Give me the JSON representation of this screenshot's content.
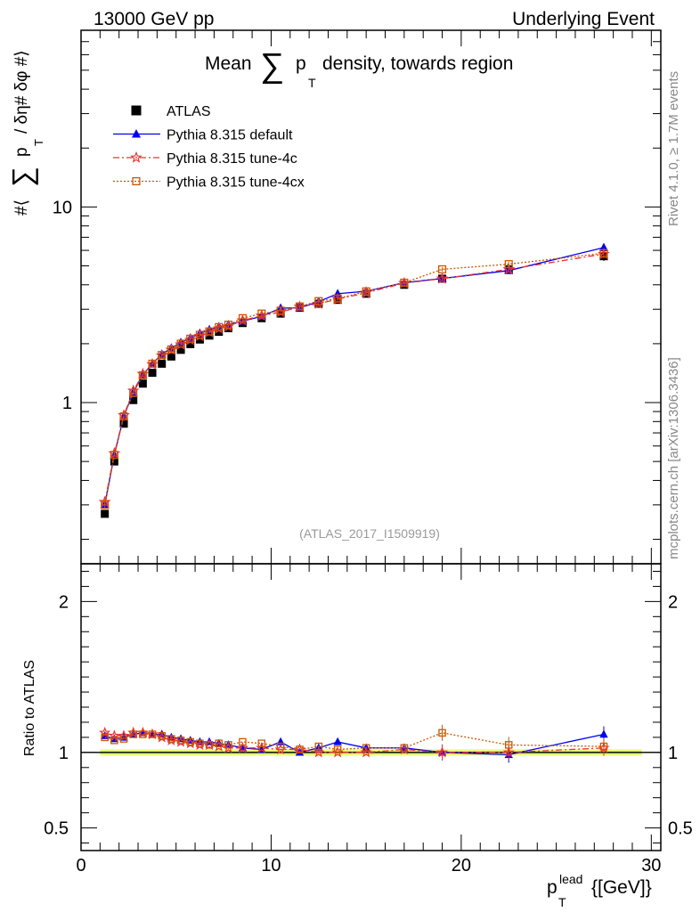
{
  "header": {
    "left": "13000 GeV pp",
    "right": "Underlying Event"
  },
  "side_text": {
    "rivet": "Rivet 4.1.0, ≥ 1.7M events",
    "site": "mcplots.cern.ch [arXiv:1306.3436]"
  },
  "watermark": "(ATLAS_2017_I1509919)",
  "chart_data": [
    {
      "type": "line",
      "title": "Mean ∑ p_T density, towards region",
      "title_parts": {
        "pre": "Mean",
        "sum": "∑",
        "p": "p",
        "sub": "T",
        "post": "density, towards region"
      },
      "ylabel": "#⟨ ∑ p_T / δη# δφ #⟩",
      "ylabel_parts": {
        "pre": "#⟨",
        "sum": "∑",
        "p": "p",
        "sub": "T",
        "post": "/ δη# δφ #⟩"
      },
      "yscale": "log",
      "xlim": [
        0,
        30.5
      ],
      "ylim": [
        0.15,
        80
      ],
      "ytick_labels": [
        {
          "value": 1,
          "label": "1"
        },
        {
          "value": 10,
          "label": "10"
        }
      ],
      "legend_position": "top-left",
      "x": [
        1.25,
        1.75,
        2.25,
        2.75,
        3.25,
        3.75,
        4.25,
        4.75,
        5.25,
        5.75,
        6.25,
        6.75,
        7.25,
        7.75,
        8.5,
        9.5,
        10.5,
        11.5,
        12.5,
        13.5,
        15,
        17,
        19,
        22.5,
        27.5
      ],
      "series": [
        {
          "name": "ATLAS",
          "style": "data",
          "color": "#000000",
          "marker": "square",
          "values": [
            0.27,
            0.5,
            0.78,
            1.03,
            1.25,
            1.42,
            1.58,
            1.72,
            1.86,
            1.99,
            2.1,
            2.2,
            2.3,
            2.4,
            2.55,
            2.7,
            2.85,
            3.05,
            3.2,
            3.35,
            3.6,
            4.0,
            4.3,
            4.8,
            5.6
          ],
          "errors": [
            0.01,
            0.01,
            0.02,
            0.02,
            0.02,
            0.02,
            0.02,
            0.03,
            0.03,
            0.03,
            0.03,
            0.03,
            0.04,
            0.04,
            0.04,
            0.05,
            0.05,
            0.06,
            0.07,
            0.08,
            0.08,
            0.1,
            0.13,
            0.18,
            0.3
          ]
        },
        {
          "name": "Pythia 8.315 default",
          "style": "solid",
          "color": "#0000ee",
          "marker": "triangle",
          "values": [
            0.3,
            0.54,
            0.85,
            1.13,
            1.39,
            1.58,
            1.77,
            1.9,
            2.03,
            2.14,
            2.26,
            2.36,
            2.44,
            2.5,
            2.61,
            2.76,
            3.04,
            3.05,
            3.28,
            3.6,
            3.71,
            4.1,
            4.31,
            4.73,
            6.2
          ],
          "errors": [
            0.01,
            0.01,
            0.02,
            0.02,
            0.02,
            0.02,
            0.03,
            0.03,
            0.03,
            0.03,
            0.03,
            0.03,
            0.04,
            0.04,
            0.04,
            0.05,
            0.05,
            0.05,
            0.06,
            0.07,
            0.07,
            0.1,
            0.12,
            0.15,
            0.3
          ]
        },
        {
          "name": "Pythia 8.315 tune-4c",
          "style": "dashdot",
          "color": "#ee3333",
          "marker": "star",
          "values": [
            0.31,
            0.55,
            0.86,
            1.15,
            1.4,
            1.57,
            1.74,
            1.86,
            1.98,
            2.09,
            2.19,
            2.29,
            2.39,
            2.45,
            2.63,
            2.78,
            2.9,
            3.09,
            3.2,
            3.38,
            3.64,
            4.08,
            4.3,
            4.8,
            5.75
          ],
          "errors": [
            0.01,
            0.01,
            0.02,
            0.02,
            0.02,
            0.02,
            0.03,
            0.03,
            0.03,
            0.03,
            0.03,
            0.03,
            0.04,
            0.04,
            0.04,
            0.05,
            0.05,
            0.05,
            0.06,
            0.07,
            0.07,
            0.1,
            0.12,
            0.15,
            0.3
          ]
        },
        {
          "name": "Pythia 8.315 tune-4cx",
          "style": "dotted",
          "color": "#cc5500",
          "marker": "open-square",
          "values": [
            0.3,
            0.54,
            0.85,
            1.12,
            1.38,
            1.58,
            1.75,
            1.87,
            2.0,
            2.12,
            2.22,
            2.31,
            2.43,
            2.5,
            2.7,
            2.85,
            2.95,
            3.1,
            3.3,
            3.4,
            3.7,
            4.1,
            4.8,
            5.1,
            5.8
          ],
          "errors": [
            0.01,
            0.01,
            0.02,
            0.02,
            0.02,
            0.02,
            0.03,
            0.03,
            0.03,
            0.03,
            0.03,
            0.03,
            0.04,
            0.04,
            0.04,
            0.05,
            0.05,
            0.05,
            0.06,
            0.07,
            0.07,
            0.1,
            0.12,
            0.15,
            0.3
          ]
        }
      ]
    },
    {
      "type": "line",
      "title": "",
      "ylabel": "Ratio to ATLAS",
      "xlabel": "p_T^lead {[GeV]}",
      "xlabel_parts": {
        "p": "p",
        "sub": "T",
        "sup": "lead",
        "post": "{[GeV]}"
      },
      "yscale": "linear",
      "xlim": [
        0,
        30.5
      ],
      "ylim": [
        0.35,
        2.25
      ],
      "xticks": [
        0,
        10,
        20,
        30
      ],
      "ytick_labels": [
        {
          "value": 0.5,
          "label": "0.5"
        },
        {
          "value": 1,
          "label": "1"
        },
        {
          "value": 2,
          "label": "2"
        }
      ],
      "reference_band": {
        "center": 1.0,
        "halfwidth": 0.022
      },
      "x": [
        1.25,
        1.75,
        2.25,
        2.75,
        3.25,
        3.75,
        4.25,
        4.75,
        5.25,
        5.75,
        6.25,
        6.75,
        7.25,
        7.75,
        8.5,
        9.5,
        10.5,
        11.5,
        12.5,
        13.5,
        15,
        17,
        19,
        22.5,
        27.5
      ],
      "series": [
        {
          "name": "Pythia 8.315 default",
          "color": "#0000ee",
          "marker": "triangle",
          "style": "solid",
          "values": [
            1.11,
            1.09,
            1.1,
            1.12,
            1.13,
            1.12,
            1.12,
            1.1,
            1.09,
            1.08,
            1.07,
            1.07,
            1.06,
            1.05,
            1.03,
            1.02,
            1.07,
            1.0,
            1.03,
            1.07,
            1.03,
            1.03,
            1.0,
            0.985,
            1.12
          ]
        },
        {
          "name": "Pythia 8.315 tune-4c",
          "color": "#ee3333",
          "marker": "star",
          "style": "dashdot",
          "values": [
            1.13,
            1.11,
            1.11,
            1.13,
            1.13,
            1.12,
            1.1,
            1.08,
            1.07,
            1.06,
            1.05,
            1.05,
            1.04,
            1.03,
            1.03,
            1.03,
            1.02,
            1.02,
            1.0,
            1.0,
            1.0,
            1.02,
            1.0,
            1.0,
            1.03
          ]
        },
        {
          "name": "Pythia 8.315 tune-4cx",
          "color": "#cc5500",
          "marker": "open-square",
          "style": "dotted",
          "values": [
            1.1,
            1.08,
            1.09,
            1.12,
            1.12,
            1.12,
            1.11,
            1.09,
            1.08,
            1.07,
            1.06,
            1.05,
            1.06,
            1.05,
            1.07,
            1.06,
            1.04,
            1.02,
            1.04,
            1.02,
            1.03,
            1.03,
            1.13,
            1.05,
            1.04
          ]
        }
      ]
    }
  ]
}
